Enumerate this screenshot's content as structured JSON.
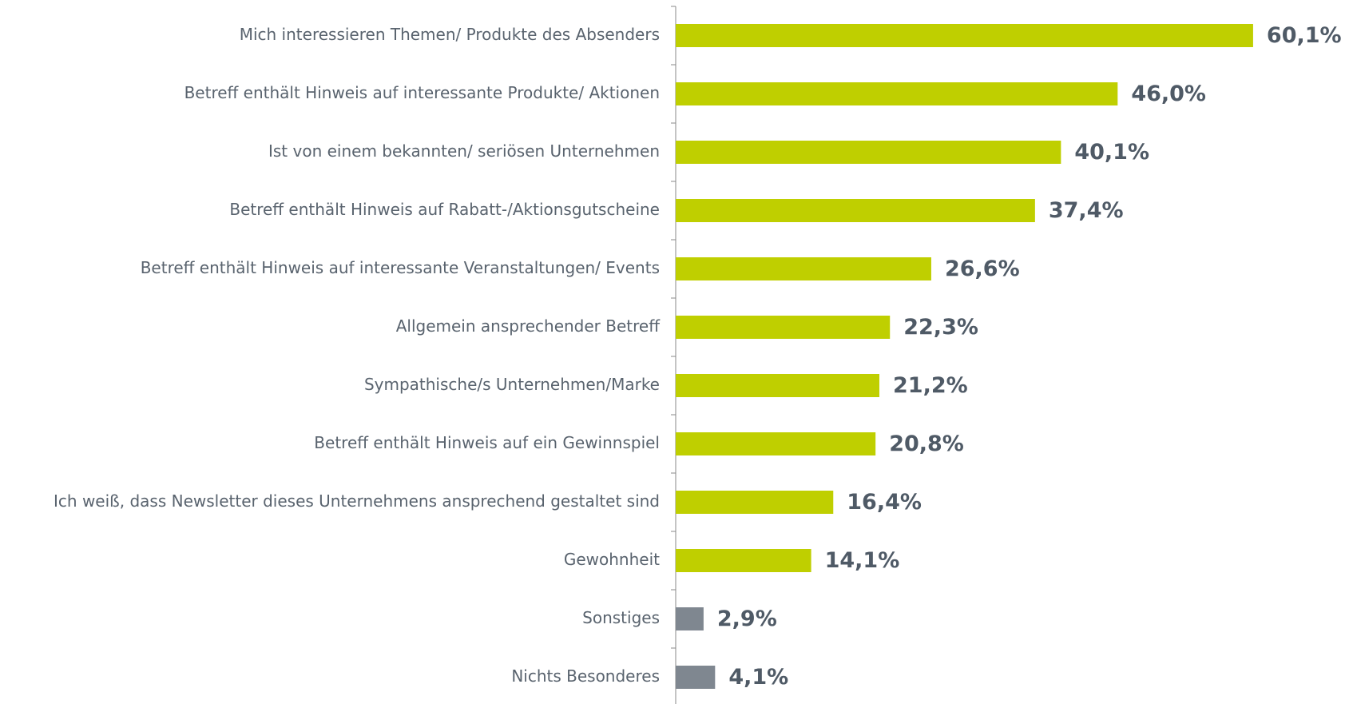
{
  "chart_data": {
    "type": "barh",
    "categories": [
      "Mich interessieren Themen/ Produkte des Absenders",
      "Betreff enthält Hinweis auf interessante Produkte/ Aktionen",
      "Ist von einem bekannten/ seriösen Unternehmen",
      "Betreff enthält Hinweis auf Rabatt-/Aktionsgutscheine",
      "Betreff enthält Hinweis auf interessante Veranstaltungen/ Events",
      "Allgemein ansprechender Betreff",
      "Sympathische/s Unternehmen/Marke",
      "Betreff enthält Hinweis auf ein Gewinnspiel",
      "Ich weiß, dass Newsletter dieses Unternehmens ansprechend gestaltet sind",
      "Gewohnheit",
      "Sonstiges",
      "Nichts Besonderes"
    ],
    "values": [
      60.1,
      46.0,
      40.1,
      37.4,
      26.6,
      22.3,
      21.2,
      20.8,
      16.4,
      14.1,
      2.9,
      4.1
    ],
    "value_labels": [
      "60,1%",
      "46,0%",
      "40,1%",
      "37,4%",
      "26,6%",
      "22,3%",
      "21,2%",
      "20,8%",
      "16,4%",
      "14,1%",
      "2,9%",
      "4,1%"
    ],
    "colors": [
      "#bfcf00",
      "#bfcf00",
      "#bfcf00",
      "#bfcf00",
      "#bfcf00",
      "#bfcf00",
      "#bfcf00",
      "#bfcf00",
      "#bfcf00",
      "#bfcf00",
      "#7f8790",
      "#7f8790"
    ],
    "xlim": [
      0,
      70
    ]
  }
}
